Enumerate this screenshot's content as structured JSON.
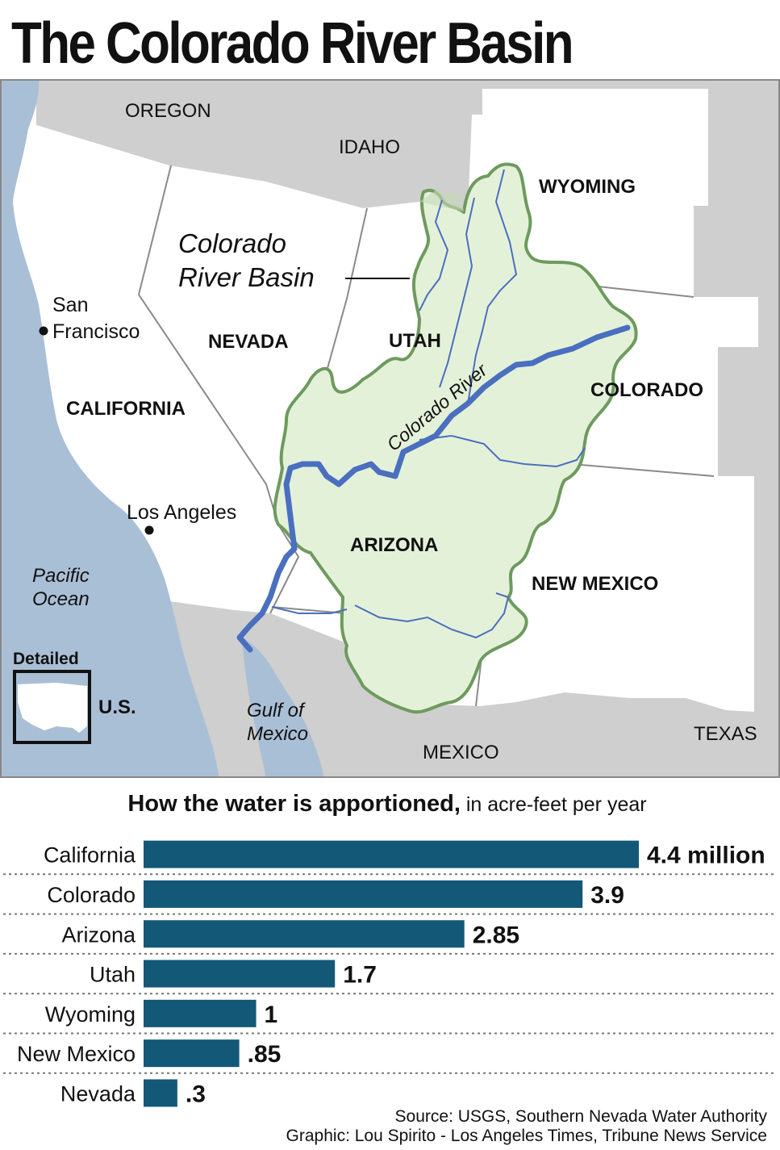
{
  "title": "The Colorado River Basin",
  "map": {
    "states": {
      "oregon": "OREGON",
      "idaho": "IDAHO",
      "wyoming": "WYOMING",
      "nevada": "NEVADA",
      "utah": "UTAH",
      "colorado": "COLORADO",
      "california": "CALIFORNIA",
      "arizona": "ARIZONA",
      "new_mexico": "NEW MEXICO",
      "texas": "TEXAS",
      "mexico": "MEXICO"
    },
    "cities": {
      "san_francisco_1": "San",
      "san_francisco_2": "Francisco",
      "los_angeles": "Los Angeles"
    },
    "water": {
      "pacific_1": "Pacific",
      "pacific_2": "Ocean",
      "gulf_1": "Gulf of",
      "gulf_2": "Mexico"
    },
    "basin_label_1": "Colorado",
    "basin_label_2": "River Basin",
    "river_label": "Colorado River",
    "inset": {
      "label_top": "Detailed",
      "label_side": "U.S."
    },
    "colors": {
      "land": "#ffffff",
      "other_land": "#cfcfcf",
      "water": "#a9bfd6",
      "basin_fill": "#e4f1d9",
      "basin_outline": "#6e9a5e",
      "river": "#4a6fbf"
    }
  },
  "chart": {
    "heading_main": "How the water is apportioned,",
    "heading_sub": " in acre-feet per year"
  },
  "chart_data": {
    "type": "bar",
    "orientation": "horizontal",
    "title": "How the water is apportioned, in acre-feet per year",
    "categories": [
      "California",
      "Colorado",
      "Arizona",
      "Utah",
      "Wyoming",
      "New Mexico",
      "Nevada"
    ],
    "values": [
      4.4,
      3.9,
      2.85,
      1.7,
      1,
      0.85,
      0.3
    ],
    "value_labels": [
      "4.4 million",
      "3.9",
      "2.85",
      "1.7",
      "1",
      ".85",
      ".3"
    ],
    "unit": "million acre-feet per year",
    "xlim": [
      0,
      4.4
    ],
    "bar_color": "#135877",
    "gridlines": "dotted separators"
  },
  "source": "Source: USGS, Southern Nevada Water Authority",
  "credit": "Graphic: Lou Spirito - Los Angeles Times, Tribune News Service"
}
